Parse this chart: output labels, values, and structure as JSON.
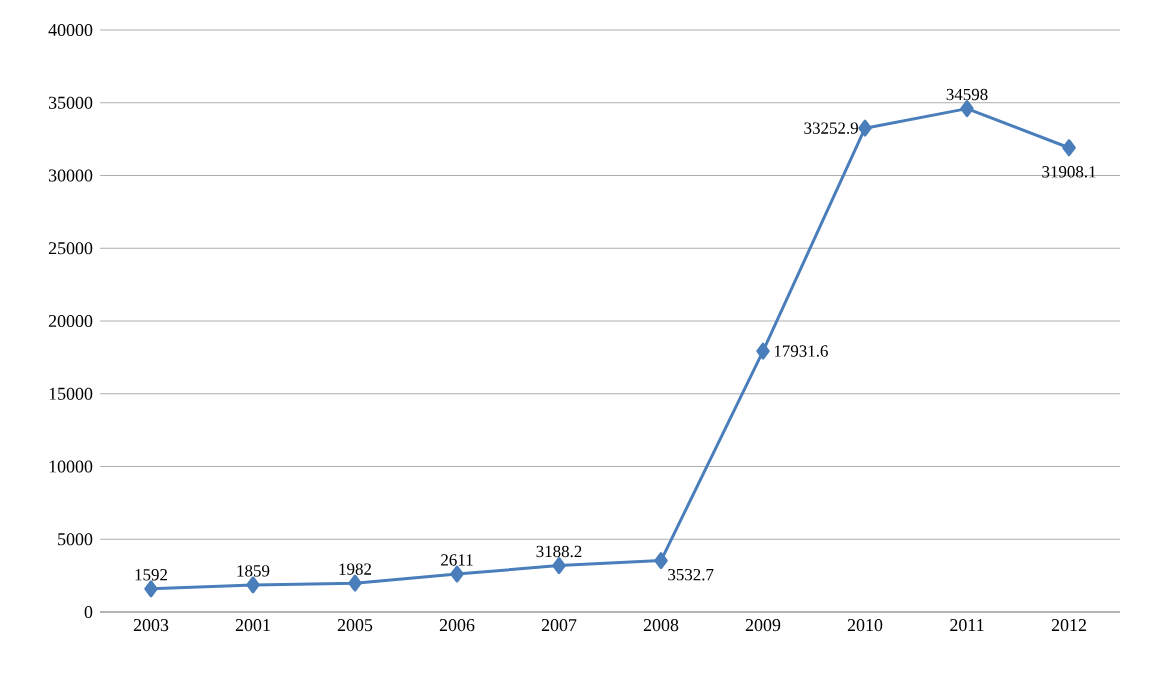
{
  "chart_data": {
    "type": "line",
    "categories": [
      "2003",
      "2001",
      "2005",
      "2006",
      "2007",
      "2008",
      "2009",
      "2010",
      "2011",
      "2012"
    ],
    "values": [
      1592,
      1859,
      1982,
      2611,
      3188.2,
      3532.7,
      17931.6,
      33252.9,
      34598,
      31908.1
    ],
    "color": "#4a7ebb",
    "marker": "diamond",
    "data_labels": true,
    "grid": "y",
    "ylim": [
      0,
      40000
    ],
    "yticks": [
      0,
      5000,
      10000,
      15000,
      20000,
      25000,
      30000,
      35000,
      40000
    ]
  }
}
